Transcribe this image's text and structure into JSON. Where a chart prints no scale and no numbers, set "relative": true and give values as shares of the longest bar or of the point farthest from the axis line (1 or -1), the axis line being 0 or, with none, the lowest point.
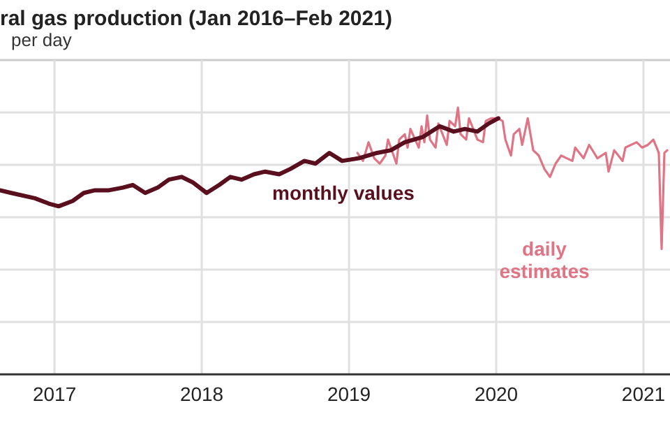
{
  "chart_data": {
    "type": "line",
    "title": "ral gas production (Jan 2016–Feb 2021)",
    "subtitle": "per day",
    "relative": true,
    "grid": true,
    "xlim": [
      2016.63,
      2021.18
    ],
    "xticks": [
      2017,
      2018,
      2019,
      2020,
      2021
    ],
    "series": [
      {
        "name": "monthly values",
        "color": "#5a0f1e",
        "x": [
          2016.63,
          2016.706,
          2016.867,
          2016.962,
          2017.028,
          2017.123,
          2017.199,
          2017.275,
          2017.37,
          2017.464,
          2017.531,
          2017.616,
          2017.701,
          2017.777,
          2017.863,
          2017.938,
          2018.033,
          2018.119,
          2018.194,
          2018.27,
          2018.355,
          2018.431,
          2018.526,
          2018.602,
          2018.697,
          2018.773,
          2018.867,
          2018.953,
          2019.066,
          2019.19,
          2019.284,
          2019.379,
          2019.502,
          2019.616,
          2019.711,
          2019.787,
          2019.872,
          2019.948,
          2020.014
        ],
        "values": [
          0.69,
          0.68,
          0.66,
          0.64,
          0.63,
          0.65,
          0.68,
          0.69,
          0.69,
          0.7,
          0.71,
          0.68,
          0.7,
          0.73,
          0.74,
          0.72,
          0.68,
          0.71,
          0.74,
          0.73,
          0.75,
          0.76,
          0.75,
          0.77,
          0.8,
          0.79,
          0.83,
          0.8,
          0.81,
          0.83,
          0.84,
          0.87,
          0.89,
          0.93,
          0.91,
          0.92,
          0.91,
          0.94,
          0.96
        ]
      },
      {
        "name": "daily estimates",
        "color": "#e07384",
        "x": [
          2019.057,
          2019.095,
          2019.133,
          2019.171,
          2019.209,
          2019.247,
          2019.265,
          2019.322,
          2019.341,
          2019.379,
          2019.398,
          2019.417,
          2019.474,
          2019.493,
          2019.512,
          2019.531,
          2019.55,
          2019.588,
          2019.607,
          2019.664,
          2019.683,
          2019.721,
          2019.74,
          2019.758,
          2019.796,
          2019.815,
          2019.872,
          2019.91,
          2019.929,
          2019.967,
          2020.005,
          2020.043,
          2020.062,
          2020.1,
          2020.119,
          2020.157,
          2020.176,
          2020.214,
          2020.251,
          2020.289,
          2020.327,
          2020.365,
          2020.403,
          2020.441,
          2020.479,
          2020.517,
          2020.536,
          2020.593,
          2020.631,
          2020.687,
          2020.744,
          2020.763,
          2020.801,
          2020.858,
          2020.877,
          2020.953,
          2020.991,
          2021.029,
          2021.067,
          2021.104,
          2021.123,
          2021.142,
          2021.161
        ],
        "values": [
          0.83,
          0.8,
          0.87,
          0.81,
          0.79,
          0.82,
          0.88,
          0.79,
          0.88,
          0.9,
          0.85,
          0.92,
          0.85,
          0.93,
          0.87,
          0.97,
          0.88,
          0.85,
          0.94,
          0.86,
          0.95,
          0.93,
          1.0,
          0.9,
          0.88,
          0.96,
          0.88,
          0.87,
          0.95,
          0.96,
          0.96,
          0.95,
          0.88,
          0.82,
          0.9,
          0.92,
          0.86,
          0.96,
          0.84,
          0.82,
          0.77,
          0.74,
          0.79,
          0.82,
          0.81,
          0.8,
          0.85,
          0.81,
          0.86,
          0.81,
          0.83,
          0.76,
          0.84,
          0.8,
          0.85,
          0.87,
          0.85,
          0.86,
          0.88,
          0.83,
          0.47,
          0.83,
          0.84
        ]
      }
    ]
  }
}
